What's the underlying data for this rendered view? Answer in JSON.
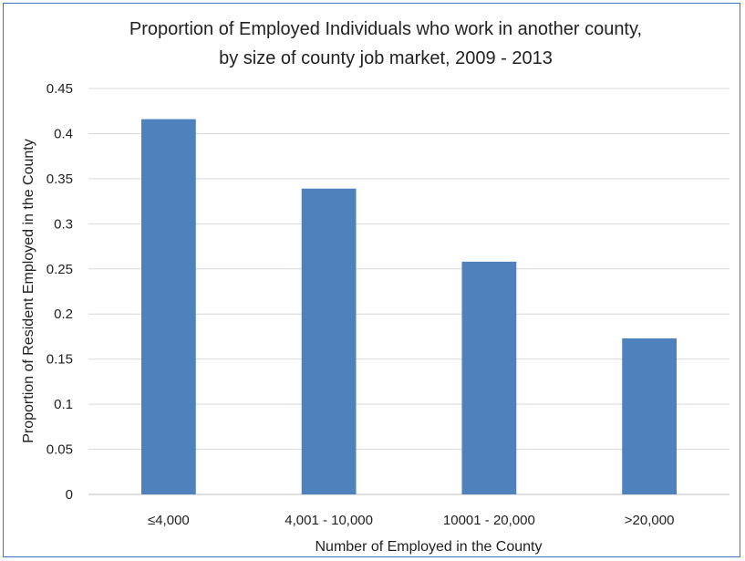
{
  "chart_data": {
    "type": "bar",
    "title_line1": "Proportion of Employed Individuals who work in another county,",
    "title_line2": "by size of county job market, 2009 - 2013",
    "xlabel": "Number of Employed in the County",
    "ylabel": "Proportion of Resident Employed  in the County",
    "categories": [
      "≤4,000",
      "4,001 - 10,000",
      "10001 - 20,000",
      ">20,000"
    ],
    "values": [
      0.416,
      0.339,
      0.258,
      0.173
    ],
    "ylim": [
      0,
      0.45
    ],
    "yticks": [
      "0",
      "0.05",
      "0.1",
      "0.15",
      "0.2",
      "0.25",
      "0.3",
      "0.35",
      "0.4",
      "0.45"
    ],
    "grid": true,
    "legend": "none",
    "bar_color": "#4f81bd"
  }
}
